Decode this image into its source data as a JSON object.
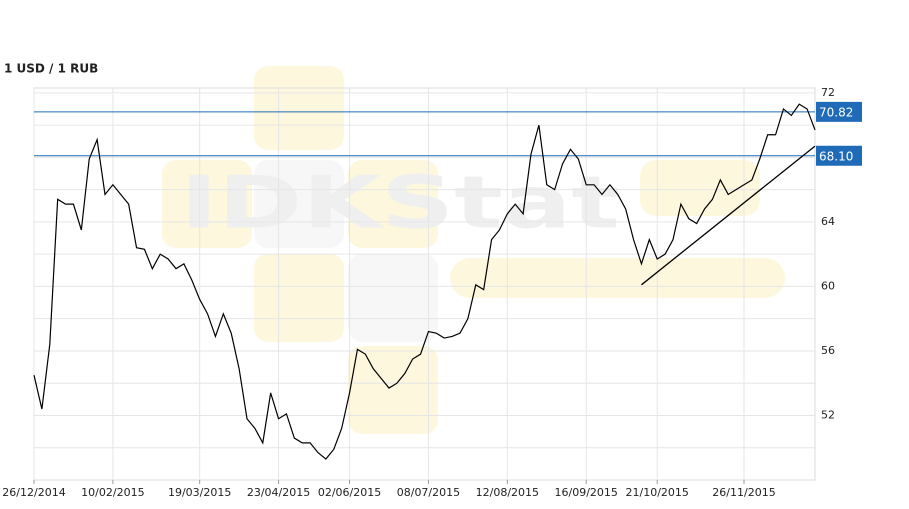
{
  "chart_data": {
    "type": "line",
    "title": "1 USD / 1 RUB",
    "watermark": "IDKStat",
    "categories": [
      "26/12/2014",
      null,
      null,
      null,
      null,
      null,
      null,
      null,
      null,
      null,
      "10/02/2015",
      null,
      null,
      null,
      null,
      null,
      null,
      null,
      null,
      null,
      null,
      "19/03/2015",
      null,
      null,
      null,
      null,
      null,
      null,
      null,
      null,
      null,
      "23/04/2015",
      null,
      null,
      null,
      null,
      null,
      null,
      null,
      null,
      "02/06/2015",
      null,
      null,
      null,
      null,
      null,
      null,
      null,
      null,
      null,
      "08/07/2015",
      null,
      null,
      null,
      null,
      null,
      null,
      null,
      null,
      null,
      "12/08/2015",
      null,
      null,
      null,
      null,
      null,
      null,
      null,
      null,
      null,
      "16/09/2015",
      null,
      null,
      null,
      null,
      null,
      null,
      null,
      null,
      "21/10/2015",
      null,
      null,
      null,
      null,
      null,
      null,
      null,
      null,
      null,
      null,
      "26/11/2015",
      null,
      null,
      null,
      null,
      null,
      null,
      null,
      null,
      null
    ],
    "series": [
      {
        "name": "1 USD / 1 RUB",
        "color": "#000000",
        "values": [
          54.5,
          52.4,
          56.4,
          65.4,
          65.1,
          65.1,
          63.5,
          67.9,
          69.1,
          65.7,
          66.3,
          65.7,
          65.1,
          62.4,
          62.3,
          61.1,
          62.0,
          61.7,
          61.1,
          61.4,
          60.4,
          59.2,
          58.3,
          56.9,
          58.3,
          57.1,
          54.9,
          51.8,
          51.2,
          50.3,
          53.4,
          51.8,
          52.1,
          50.6,
          50.3,
          50.3,
          49.7,
          49.3,
          49.9,
          51.2,
          53.4,
          56.1,
          55.8,
          54.9,
          54.3,
          53.7,
          54.0,
          54.6,
          55.5,
          55.8,
          57.2,
          57.1,
          56.8,
          56.9,
          57.1,
          58.0,
          60.1,
          59.8,
          62.9,
          63.5,
          64.5,
          65.1,
          64.5,
          68.2,
          70.0,
          66.3,
          66.0,
          67.6,
          68.5,
          67.9,
          66.3,
          66.3,
          65.7,
          66.3,
          65.7,
          64.8,
          62.9,
          61.4,
          62.9,
          61.7,
          62.0,
          62.9,
          65.1,
          64.2,
          63.9,
          64.8,
          65.4,
          66.6,
          65.7,
          66.0,
          66.3,
          66.6,
          67.9,
          69.4,
          69.4,
          71.0,
          70.6,
          71.3,
          71.0,
          69.7
        ]
      }
    ],
    "ylim": [
      48,
      72.3
    ],
    "yticks": [
      52,
      56,
      60,
      64,
      72
    ],
    "grid_yticks": [
      50,
      54,
      58,
      62,
      66,
      68,
      70
    ],
    "levels": [
      70.82,
      {
        "value": 68.1,
        "label": "68.10"
      }
    ],
    "level_color": "#1f6bb8",
    "trendline": {
      "x": [
        77,
        99
      ],
      "y": [
        60.1,
        68.7
      ]
    },
    "grid": true
  }
}
